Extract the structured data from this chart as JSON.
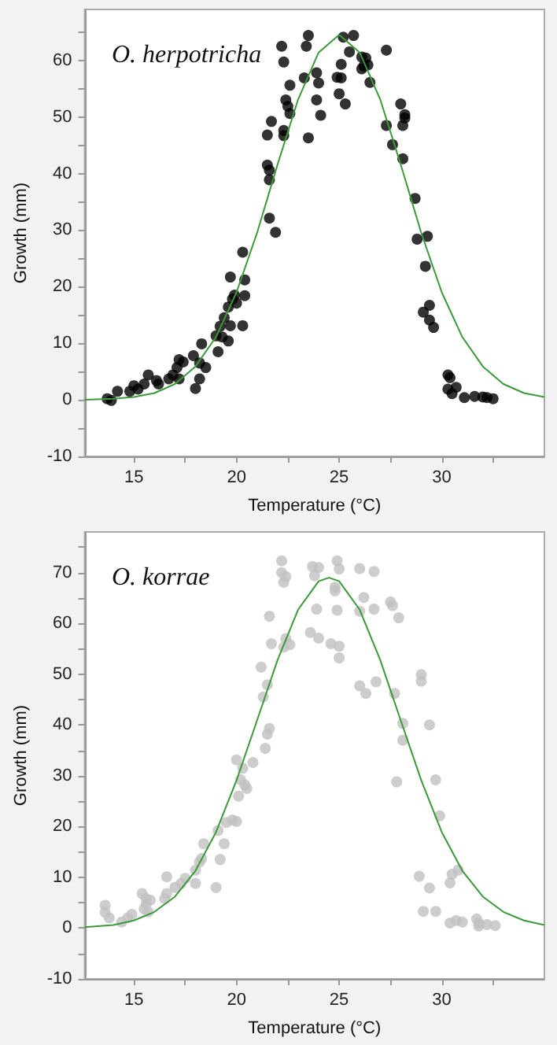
{
  "chart_data": [
    {
      "type": "scatter",
      "title": "O. herpotricha",
      "xlabel": "Temperature (°C)",
      "ylabel": "Growth (mm)",
      "xlim": [
        12.6,
        35
      ],
      "ylim": [
        -10,
        69
      ],
      "xticks": [
        15,
        {
          "value": 17.5,
          "label": null
        },
        20,
        {
          "value": 22.5,
          "label": null
        },
        25,
        {
          "value": 27.5,
          "label": null
        },
        30,
        {
          "value": 32.5,
          "label": null
        }
      ],
      "yticks": [
        -10,
        {
          "value": -5,
          "label": null
        },
        0,
        {
          "value": 5,
          "label": null
        },
        10,
        {
          "value": 15,
          "label": null
        },
        20,
        {
          "value": 25,
          "label": null
        },
        30,
        {
          "value": 35,
          "label": null
        },
        40,
        {
          "value": 45,
          "label": null
        },
        50,
        {
          "value": 55,
          "label": null
        },
        60,
        {
          "value": 65,
          "label": null
        }
      ],
      "grid": false,
      "series": [
        {
          "type": "scatter",
          "color": "#000000",
          "marker": "circle",
          "x": [
            22.2,
            23.5,
            23.4,
            22.3,
            25.7,
            25.2,
            25.5,
            27.3,
            25.1,
            26.1,
            26.3,
            26.2,
            26.4,
            26.1,
            26.5,
            23.3,
            23.9,
            24.0,
            24.9,
            25.1,
            25.0,
            25.3,
            23.9,
            24.1,
            23.5,
            22.6,
            22.4,
            22.5,
            22.6,
            21.7,
            21.5,
            22.3,
            22.3,
            21.5,
            21.6,
            21.6,
            21.6,
            21.9,
            20.3,
            27.3,
            27.6,
            28.0,
            28.2,
            28.2,
            28.1,
            28.1,
            28.7,
            28.8,
            29.3,
            19.7,
            20.4,
            19.9,
            20.4,
            19.8,
            20.0,
            19.6,
            19.4,
            19.2,
            19.7,
            20.3,
            19.0,
            19.3,
            19.6,
            19.1,
            18.3,
            17.9,
            18.2,
            18.5,
            18.2,
            18.0,
            17.2,
            17.4,
            17.1,
            16.9,
            16.7,
            17.2,
            15.7,
            16.1,
            16.2,
            15.5,
            15.0,
            15.2,
            14.8,
            14.2,
            13.7,
            13.9,
            29.2,
            29.1,
            29.4,
            29.4,
            29.6,
            30.3,
            30.4,
            30.3,
            30.5,
            30.7,
            31.1,
            31.6,
            32.0,
            32.2,
            32.5
          ],
          "values": [
            62.5,
            64.4,
            62.5,
            59.7,
            64.4,
            64.1,
            61.5,
            61.8,
            59.3,
            60.6,
            60.4,
            59.0,
            59.2,
            58.5,
            56.1,
            56.9,
            57.8,
            56.0,
            57.0,
            56.9,
            54.1,
            52.3,
            53.0,
            50.3,
            46.3,
            55.6,
            53.0,
            51.9,
            50.6,
            49.2,
            46.8,
            47.6,
            46.7,
            41.5,
            40.6,
            38.9,
            32.1,
            29.6,
            26.1,
            48.5,
            45.1,
            52.3,
            50.4,
            49.8,
            48.5,
            42.6,
            35.6,
            28.4,
            28.9,
            21.7,
            21.2,
            18.5,
            18.4,
            17.8,
            17.1,
            16.4,
            14.5,
            13.0,
            13.1,
            13.1,
            11.3,
            11.1,
            10.4,
            8.5,
            9.9,
            7.8,
            6.5,
            5.7,
            3.7,
            2.0,
            7.1,
            6.7,
            5.7,
            4.4,
            3.7,
            3.7,
            4.4,
            3.4,
            2.8,
            2.8,
            2.5,
            1.9,
            1.5,
            1.5,
            0.2,
            -0.1,
            23.6,
            15.5,
            16.7,
            14.1,
            12.8,
            4.4,
            3.9,
            1.9,
            1.1,
            2.2,
            0.4,
            0.6,
            0.5,
            0.4,
            0.2
          ]
        },
        {
          "type": "line",
          "color": "#3a9a3a",
          "marker": "none",
          "line_style": "solid",
          "x": [
            12.6,
            14,
            15,
            16,
            17,
            18,
            19,
            20,
            21,
            22,
            23,
            24,
            25,
            26,
            27,
            28,
            29,
            30,
            31,
            32,
            33,
            34,
            35
          ],
          "values": [
            0,
            0.2,
            0.5,
            1.2,
            2.8,
            5.9,
            11.1,
            19.0,
            29.5,
            41.6,
            53.1,
            61.4,
            64.5,
            61.4,
            53.1,
            41.6,
            29.5,
            19.0,
            11.1,
            5.9,
            2.8,
            1.2,
            0.5
          ]
        }
      ]
    },
    {
      "type": "scatter",
      "title": "O. korrae",
      "xlabel": "Temperature (°C)",
      "ylabel": "Growth (mm)",
      "xlim": [
        12.6,
        35
      ],
      "ylim": [
        -10,
        78
      ],
      "xticks": [
        15,
        {
          "value": 17.5,
          "label": null
        },
        20,
        {
          "value": 22.5,
          "label": null
        },
        25,
        {
          "value": 27.5,
          "label": null
        },
        30,
        {
          "value": 32.5,
          "label": null
        }
      ],
      "yticks": [
        -10,
        {
          "value": -5,
          "label": null
        },
        0,
        {
          "value": 5,
          "label": null
        },
        10,
        {
          "value": 15,
          "label": null
        },
        20,
        {
          "value": 25,
          "label": null
        },
        30,
        {
          "value": 35,
          "label": null
        },
        40,
        {
          "value": 45,
          "label": null
        },
        50,
        {
          "value": 55,
          "label": null
        },
        60,
        {
          "value": 65,
          "label": null
        },
        70,
        {
          "value": 75,
          "label": null
        }
      ],
      "grid": false,
      "series": [
        {
          "type": "scatter",
          "color": "#c0c0c0",
          "marker": "circle",
          "x": [
            22.2,
            22.2,
            22.4,
            22.3,
            23.7,
            24.0,
            23.8,
            24.9,
            25.0,
            24.8,
            24.8,
            26.0,
            26.7,
            23.9,
            24.9,
            26.0,
            26.7,
            26.2,
            27.5,
            27.6,
            27.9,
            21.6,
            23.6,
            24.0,
            24.6,
            25.0,
            25.0,
            21.7,
            22.4,
            22.6,
            22.3,
            21.2,
            21.5,
            21.3,
            26.0,
            26.3,
            26.8,
            27.7,
            29.0,
            29.0,
            29.4,
            28.1,
            28.1,
            21.6,
            21.5,
            21.4,
            20.8,
            20.0,
            20.3,
            27.8,
            20.2,
            20.4,
            20.5,
            20.1,
            19.8,
            20.0,
            19.5,
            19.1,
            19.4,
            18.4,
            18.3,
            18.2,
            19.2,
            18.0,
            18.0,
            17.5,
            17.3,
            16.6,
            17.0,
            16.6,
            16.5,
            19.0,
            15.4,
            15.6,
            15.8,
            15.6,
            15.5,
            15.7,
            14.9,
            14.7,
            13.6,
            13.6,
            13.8,
            14.4,
            29.7,
            29.9,
            28.9,
            29.4,
            29.1,
            29.7,
            30.4,
            30.5,
            30.8,
            30.4,
            30.7,
            31.0,
            31.7,
            31.8,
            31.8,
            32.2,
            32.6
          ],
          "values": [
            72.3,
            70.0,
            69.2,
            68.1,
            71.2,
            71.0,
            69.4,
            72.3,
            70.7,
            67.1,
            66.4,
            70.8,
            70.2,
            62.8,
            62.6,
            62.4,
            62.8,
            65.1,
            64.2,
            63.5,
            61.1,
            61.4,
            58.2,
            57.1,
            56.0,
            55.5,
            53.2,
            56.0,
            57.0,
            55.8,
            55.3,
            51.4,
            47.9,
            45.5,
            47.7,
            46.2,
            48.5,
            46.2,
            49.9,
            48.6,
            40.0,
            40.3,
            37.0,
            39.3,
            38.2,
            35.4,
            32.6,
            33.1,
            31.5,
            28.8,
            29.2,
            28.2,
            27.5,
            26.0,
            21.3,
            21.0,
            20.8,
            19.2,
            16.6,
            16.6,
            13.7,
            13.0,
            13.5,
            11.4,
            8.8,
            9.8,
            8.8,
            10.1,
            8.0,
            6.8,
            5.8,
            8.0,
            6.8,
            5.8,
            5.5,
            4.8,
            3.8,
            3.2,
            2.7,
            2.0,
            4.5,
            3.1,
            2.0,
            1.2,
            29.2,
            22.1,
            10.2,
            7.9,
            3.3,
            3.3,
            8.9,
            10.6,
            11.4,
            1.0,
            1.5,
            1.2,
            1.8,
            1.0,
            0.4,
            0.7,
            0.5
          ]
        },
        {
          "type": "line",
          "color": "#3a9a3a",
          "marker": "none",
          "line_style": "solid",
          "x": [
            12.6,
            14,
            15,
            16,
            17,
            18,
            19,
            20,
            21,
            22,
            23,
            24,
            24.5,
            25,
            26,
            27,
            28,
            29,
            30,
            31,
            32,
            33,
            34,
            35
          ],
          "values": [
            0.2,
            0.6,
            1.5,
            3.2,
            6.2,
            11.3,
            18.9,
            29.1,
            40.9,
            52.8,
            62.7,
            68.3,
            69,
            68.3,
            62.7,
            52.8,
            40.9,
            29.1,
            18.9,
            11.3,
            6.2,
            3.2,
            1.5,
            0.6
          ]
        }
      ]
    }
  ]
}
